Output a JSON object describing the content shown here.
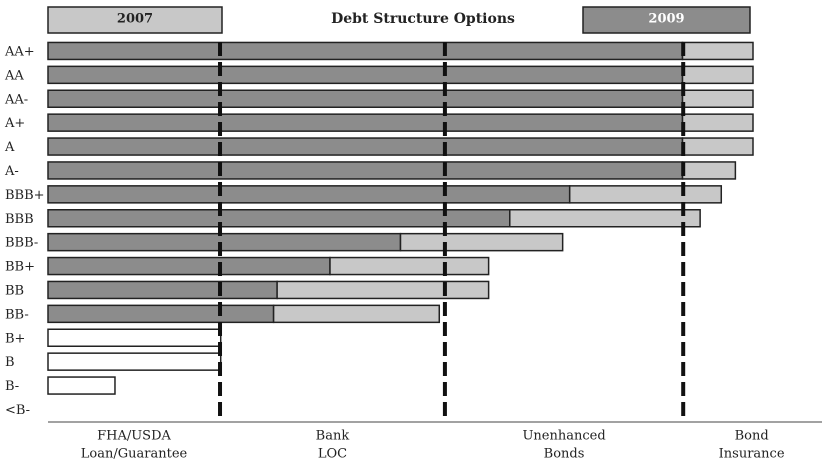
{
  "chart_data": {
    "type": "bar",
    "orientation": "horizontal",
    "title": "Debt Structure Options",
    "categories": [
      "AA+",
      "AA",
      "AA-",
      "A+",
      "A",
      "A-",
      "BBB+",
      "BBB",
      "BBB-",
      "BB+",
      "BB",
      "BB-",
      "B+",
      "B",
      "B-",
      "<B-"
    ],
    "series": [
      {
        "name": "2009",
        "color": "#8c8c8c",
        "values": [
          90,
          90,
          90,
          90,
          90,
          90,
          74,
          65.5,
          50,
          40,
          32.5,
          32,
          null,
          null,
          null,
          null
        ]
      },
      {
        "name": "2007",
        "color": "#c8c8c8",
        "values": [
          10,
          10,
          10,
          10,
          10,
          7.5,
          21.5,
          27,
          23,
          22.5,
          30,
          23.5,
          null,
          null,
          null,
          null
        ]
      },
      {
        "color": "#ffffff",
        "values": [
          null,
          null,
          null,
          null,
          null,
          null,
          null,
          null,
          null,
          null,
          null,
          null,
          24.5,
          24.5,
          9.5,
          null
        ]
      }
    ],
    "xlim": [
      0,
      100
    ],
    "dividers": [
      24.4,
      56.3,
      90.1
    ],
    "zones": [
      [
        "FHA/USDA",
        "Loan/Guarantee"
      ],
      [
        "Bank",
        "LOC"
      ],
      [
        "Unenhanced",
        "Bonds"
      ],
      [
        "Bond",
        "Insurance"
      ]
    ]
  }
}
